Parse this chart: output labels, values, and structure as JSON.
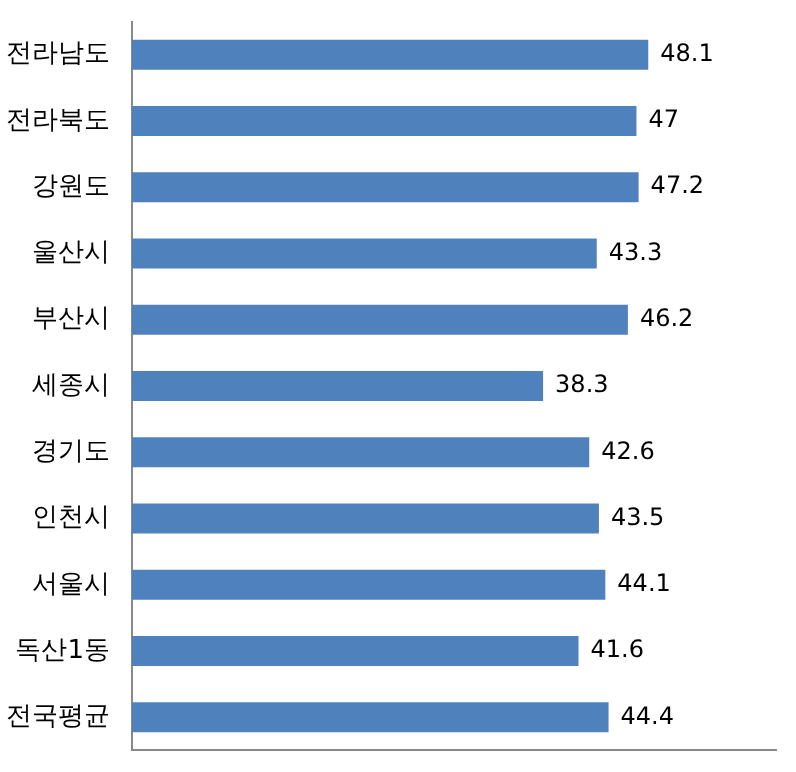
{
  "chart_data": {
    "type": "bar",
    "orientation": "horizontal",
    "categories": [
      "전라남도",
      "전라북도",
      "강원도",
      "울산시",
      "부산시",
      "세종시",
      "경기도",
      "인천시",
      "서울시",
      "독산1동",
      "전국평균"
    ],
    "values": [
      48.1,
      47,
      47.2,
      43.3,
      46.2,
      38.3,
      42.6,
      43.5,
      44.1,
      41.6,
      44.4
    ],
    "color": "#4f81bd",
    "data_labels": true,
    "grid": false,
    "legend": false,
    "tick_labels": "y"
  }
}
